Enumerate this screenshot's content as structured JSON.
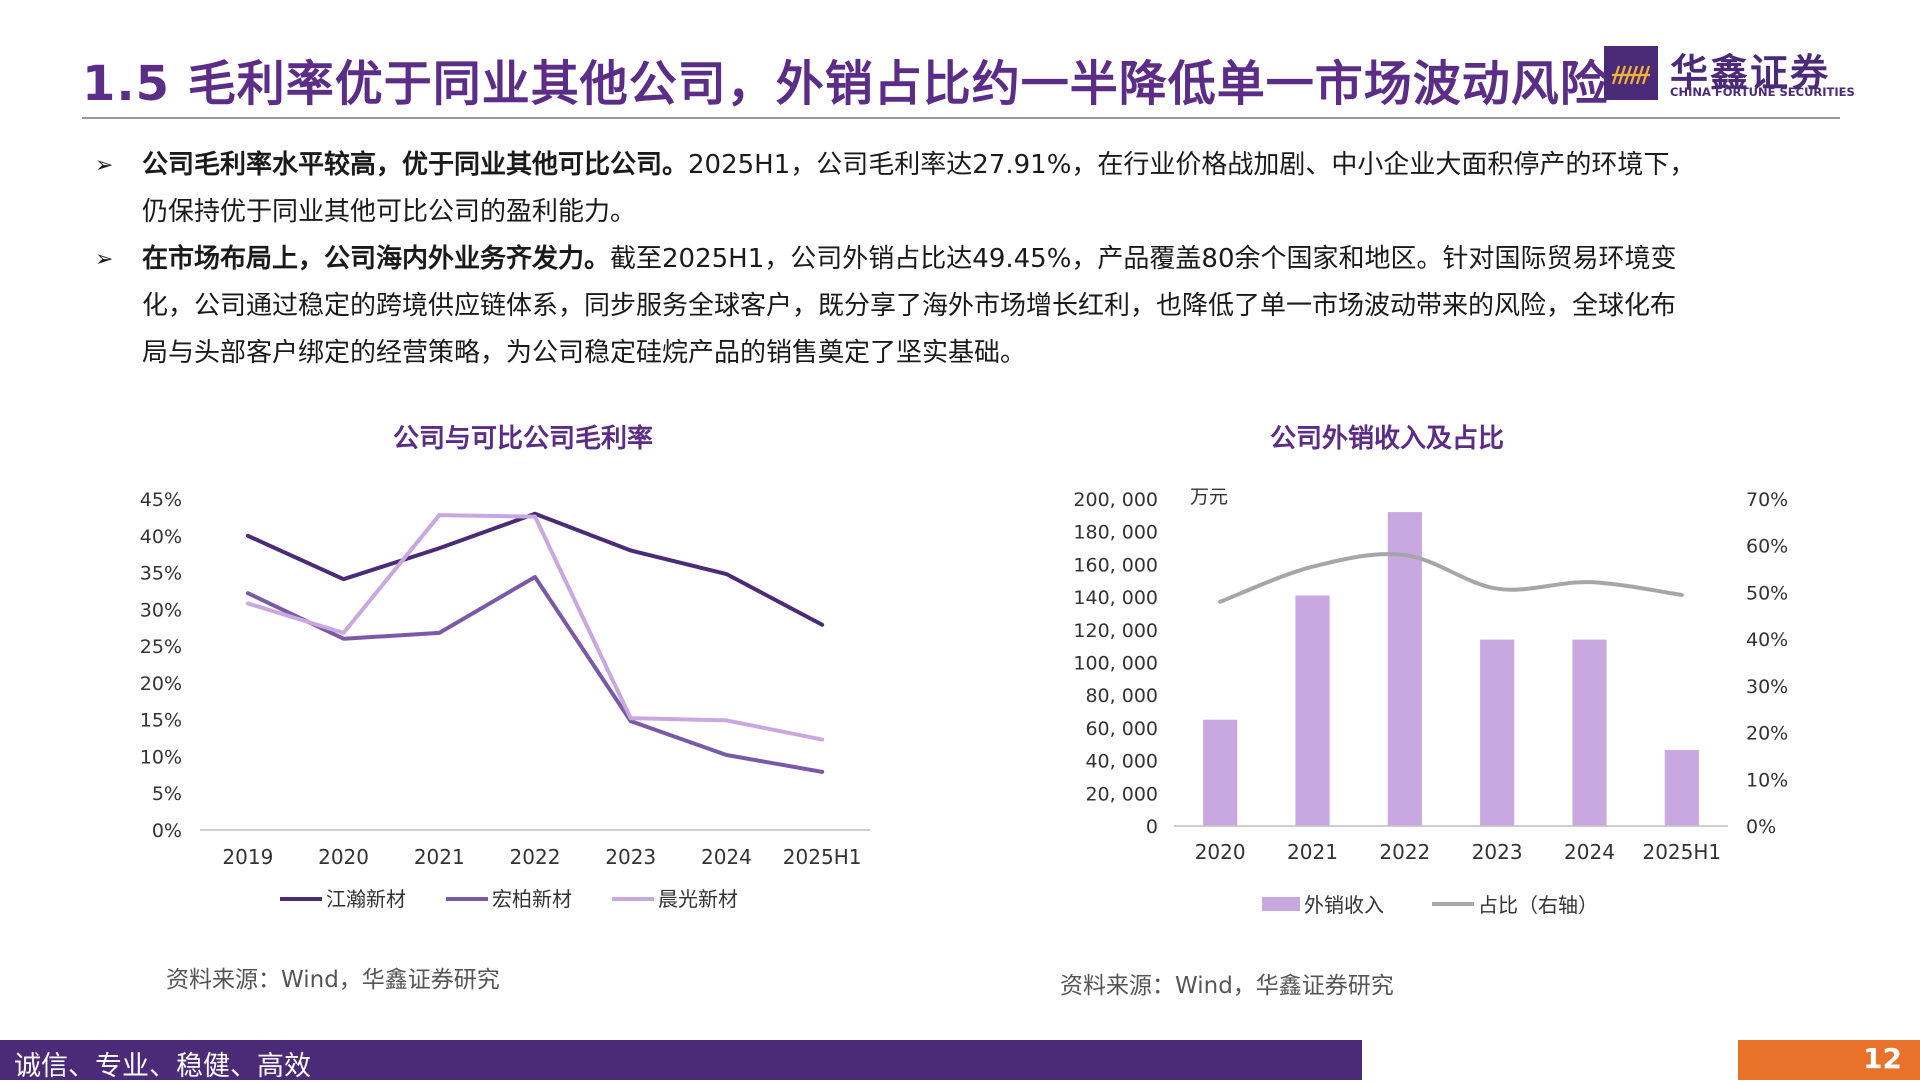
{
  "header": {
    "title": "1.5 毛利率优于同业其他公司，外销占比约一半降低单一市场波动风险",
    "logo_cn": "华鑫证券",
    "logo_en": "CHINA FORTUNE SECURITIES"
  },
  "bullets": [
    {
      "bold": "公司毛利率水平较高，优于同业其他可比公司。",
      "lines": [
        "2025H1，公司毛利率达27.91%，在行业价格战加剧、中小企业大面积停产的环境下，",
        "仍保持优于同业其他可比公司的盈利能力。"
      ]
    },
    {
      "bold": "在市场布局上，公司海内外业务齐发力。",
      "lines": [
        "截至2025H1，公司外销占比达49.45%，产品覆盖80余个国家和地区。针对国际贸易环境变",
        "化，公司通过稳定的跨境供应链体系，同步服务全球客户，既分享了海外市场增长红利，也降低了单一市场波动带来的风险，全球化布",
        "局与头部客户绑定的经营策略，为公司稳定硅烷产品的销售奠定了坚实基础。"
      ]
    }
  ],
  "footer": {
    "motto": "诚信、专业、稳健、高效",
    "page": "12"
  },
  "chart_data": [
    {
      "type": "line",
      "title": "公司与可比公司毛利率",
      "x": [
        "2019",
        "2020",
        "2021",
        "2022",
        "2023",
        "2024",
        "2025H1"
      ],
      "ylim": [
        0,
        45
      ],
      "yticks": [
        "0%",
        "5%",
        "10%",
        "15%",
        "20%",
        "25%",
        "30%",
        "35%",
        "40%",
        "45%"
      ],
      "series": [
        {
          "name": "江瀚新材",
          "color": "#4b2a78",
          "values": [
            40.0,
            34.1,
            38.3,
            43.0,
            38.0,
            34.8,
            27.9
          ]
        },
        {
          "name": "宏柏新材",
          "color": "#7a5aa8",
          "values": [
            32.2,
            26.0,
            26.8,
            34.4,
            14.8,
            10.2,
            7.9
          ]
        },
        {
          "name": "晨光新材",
          "color": "#c9a8e0",
          "values": [
            30.8,
            26.8,
            42.8,
            42.6,
            15.2,
            14.9,
            12.3
          ]
        }
      ],
      "grid": false,
      "legend": "bottom",
      "source": "资料来源：Wind，华鑫证券研究"
    },
    {
      "type": "bar",
      "title": "公司外销收入及占比",
      "categories": [
        "2020",
        "2021",
        "2022",
        "2023",
        "2024",
        "2025H1"
      ],
      "unit_label": "万元",
      "ylim": [
        0,
        200000
      ],
      "yticks": [
        "0",
        "20, 000",
        "40, 000",
        "60, 000",
        "80, 000",
        "100, 000",
        "120, 000",
        "140, 000",
        "160, 000",
        "180, 000",
        "200, 000"
      ],
      "y2lim": [
        0,
        70
      ],
      "y2ticks": [
        "0%",
        "10%",
        "20%",
        "30%",
        "40%",
        "50%",
        "60%",
        "70%"
      ],
      "series": [
        {
          "name": "外销收入",
          "type": "bar",
          "axis": "left",
          "color": "#c9a8e0",
          "values": [
            65000,
            141000,
            192000,
            114000,
            114000,
            46500
          ]
        },
        {
          "name": "占比（右轴）",
          "type": "line",
          "axis": "right",
          "color": "#a6a6a6",
          "values": [
            48.0,
            55.5,
            58.0,
            50.8,
            52.2,
            49.45
          ]
        }
      ],
      "grid": false,
      "legend": "bottom",
      "source": "资料来源：Wind，华鑫证券研究"
    }
  ]
}
